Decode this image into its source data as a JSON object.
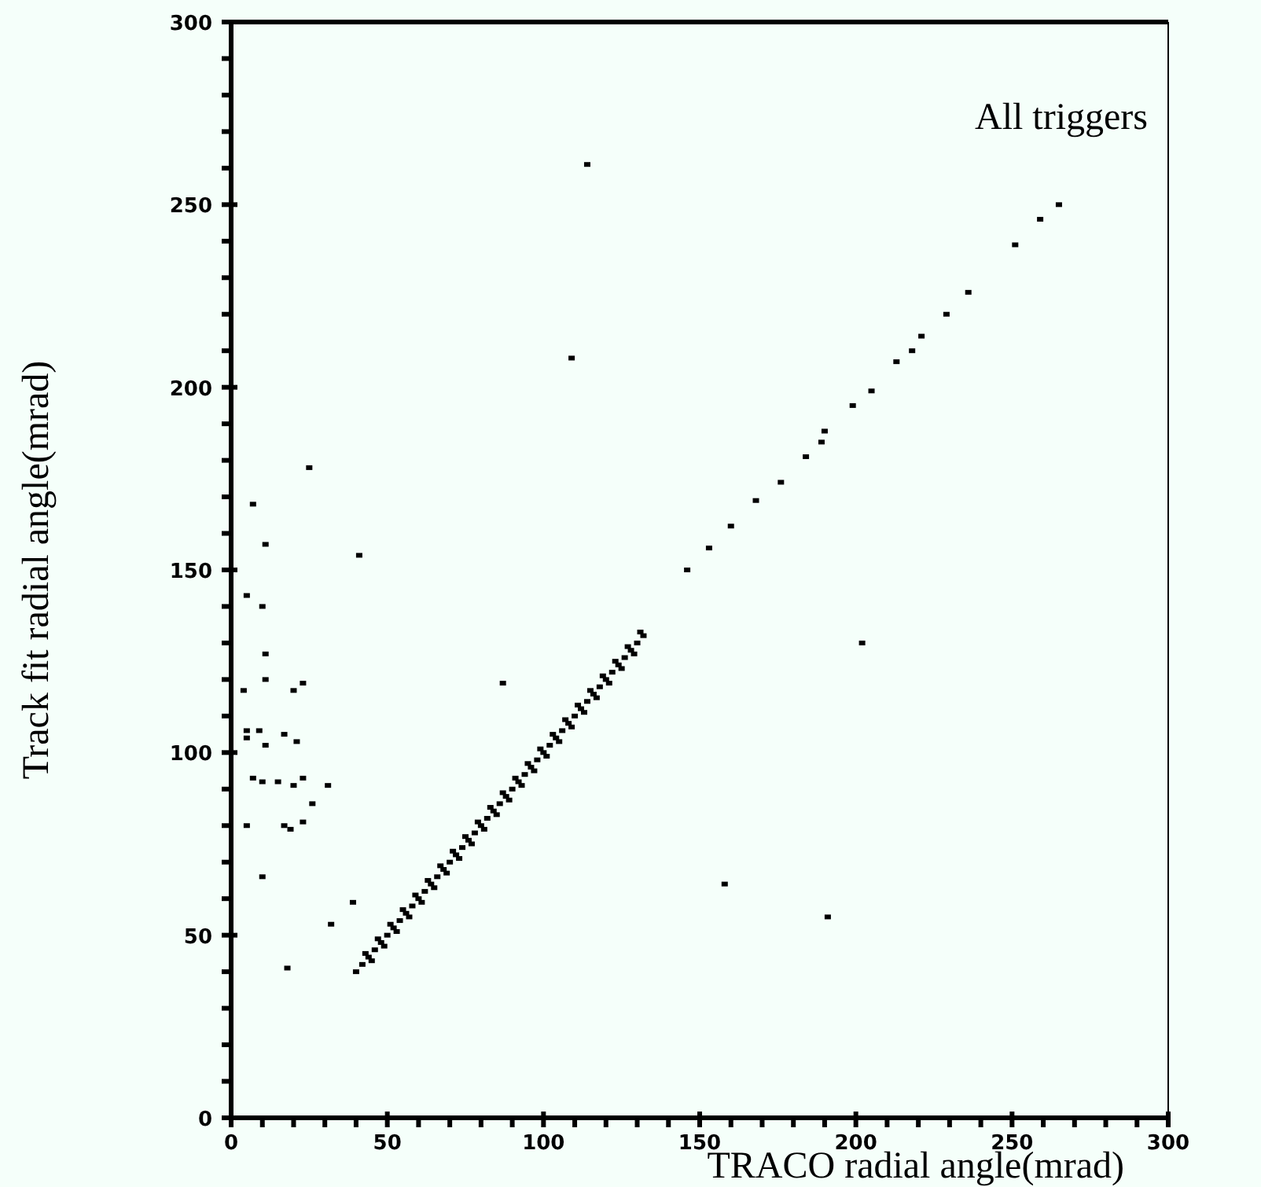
{
  "chart_data": {
    "type": "scatter",
    "xlabel": "TRACO radial angle(mrad)",
    "ylabel": "Track fit radial angle(mrad)",
    "annotations": [
      "All triggers"
    ],
    "xlim": [
      0,
      300
    ],
    "ylim": [
      0,
      300
    ],
    "xticks": [
      0,
      {
        "value": 10,
        "label": null
      },
      {
        "value": 20,
        "label": null
      },
      {
        "value": 30,
        "label": null
      },
      {
        "value": 40,
        "label": null
      },
      50,
      {
        "value": 60,
        "label": null
      },
      {
        "value": 70,
        "label": null
      },
      {
        "value": 80,
        "label": null
      },
      {
        "value": 90,
        "label": null
      },
      100,
      {
        "value": 110,
        "label": null
      },
      {
        "value": 120,
        "label": null
      },
      {
        "value": 130,
        "label": null
      },
      {
        "value": 140,
        "label": null
      },
      150,
      {
        "value": 160,
        "label": null
      },
      {
        "value": 170,
        "label": null
      },
      {
        "value": 180,
        "label": null
      },
      {
        "value": 190,
        "label": null
      },
      200,
      {
        "value": 210,
        "label": null
      },
      {
        "value": 220,
        "label": null
      },
      {
        "value": 230,
        "label": null
      },
      {
        "value": 240,
        "label": null
      },
      250,
      {
        "value": 260,
        "label": null
      },
      {
        "value": 270,
        "label": null
      },
      {
        "value": 280,
        "label": null
      },
      {
        "value": 290,
        "label": null
      },
      300
    ],
    "yticks": [
      0,
      {
        "value": 10,
        "label": null
      },
      {
        "value": 20,
        "label": null
      },
      {
        "value": 30,
        "label": null
      },
      {
        "value": 40,
        "label": null
      },
      50,
      {
        "value": 60,
        "label": null
      },
      {
        "value": 70,
        "label": null
      },
      {
        "value": 80,
        "label": null
      },
      {
        "value": 90,
        "label": null
      },
      100,
      {
        "value": 110,
        "label": null
      },
      {
        "value": 120,
        "label": null
      },
      {
        "value": 130,
        "label": null
      },
      {
        "value": 140,
        "label": null
      },
      150,
      {
        "value": 160,
        "label": null
      },
      {
        "value": 170,
        "label": null
      },
      {
        "value": 180,
        "label": null
      },
      {
        "value": 190,
        "label": null
      },
      200,
      {
        "value": 210,
        "label": null
      },
      {
        "value": 220,
        "label": null
      },
      {
        "value": 230,
        "label": null
      },
      {
        "value": 240,
        "label": null
      },
      250,
      {
        "value": 260,
        "label": null
      },
      {
        "value": 270,
        "label": null
      },
      {
        "value": 280,
        "label": null
      },
      {
        "value": 290,
        "label": null
      },
      300
    ],
    "marker": "square",
    "series": [
      {
        "color": "#000000",
        "x": [
          40,
          42,
          44,
          46,
          48,
          50,
          52,
          54,
          56,
          58,
          60,
          62,
          64,
          66,
          68,
          70,
          72,
          74,
          76,
          78,
          80,
          82,
          84,
          86,
          88,
          90,
          92,
          94,
          96,
          98,
          100,
          102,
          104,
          106,
          108,
          110,
          112,
          114,
          116,
          118,
          120,
          122,
          124,
          126,
          128,
          130,
          132,
          43,
          47,
          51,
          55,
          59,
          63,
          67,
          71,
          75,
          79,
          83,
          87,
          91,
          95,
          99,
          103,
          107,
          111,
          115,
          119,
          123,
          127,
          131,
          45,
          49,
          53,
          57,
          61,
          65,
          69,
          73,
          77,
          81,
          85,
          89,
          93,
          97,
          101,
          105,
          109,
          113,
          117,
          121,
          125,
          129,
          114,
          109,
          265,
          259,
          251,
          236,
          229,
          221,
          218,
          213,
          205,
          199,
          190,
          189,
          184,
          176,
          168,
          160,
          153,
          146,
          7,
          11,
          41,
          5,
          10,
          11,
          11,
          4,
          23,
          20,
          5,
          9,
          5,
          17,
          21,
          11,
          10,
          7,
          15,
          23,
          20,
          31,
          26,
          23,
          5,
          17,
          19,
          10,
          87,
          18,
          32,
          39,
          202,
          191,
          158,
          25
        ],
        "values": [
          40,
          42,
          44,
          46,
          48,
          50,
          52,
          54,
          56,
          58,
          60,
          62,
          64,
          66,
          68,
          70,
          72,
          74,
          76,
          78,
          80,
          82,
          84,
          86,
          88,
          90,
          92,
          94,
          96,
          98,
          100,
          102,
          104,
          106,
          108,
          110,
          112,
          114,
          116,
          118,
          120,
          122,
          124,
          126,
          128,
          130,
          132,
          45,
          49,
          53,
          57,
          61,
          65,
          69,
          73,
          77,
          81,
          85,
          89,
          93,
          97,
          101,
          105,
          109,
          113,
          117,
          121,
          125,
          129,
          133,
          43,
          47,
          51,
          55,
          59,
          63,
          67,
          71,
          75,
          79,
          83,
          87,
          91,
          95,
          99,
          103,
          107,
          111,
          115,
          119,
          123,
          127,
          261,
          208,
          250,
          246,
          239,
          226,
          220,
          214,
          210,
          207,
          199,
          195,
          188,
          185,
          181,
          174,
          169,
          162,
          156,
          150,
          168,
          157,
          154,
          143,
          140,
          127,
          120,
          117,
          119,
          117,
          106,
          106,
          104,
          105,
          103,
          102,
          92,
          93,
          92,
          93,
          91,
          91,
          86,
          81,
          80,
          80,
          79,
          66,
          119,
          41,
          53,
          59,
          130,
          55,
          64,
          178
        ]
      }
    ]
  }
}
